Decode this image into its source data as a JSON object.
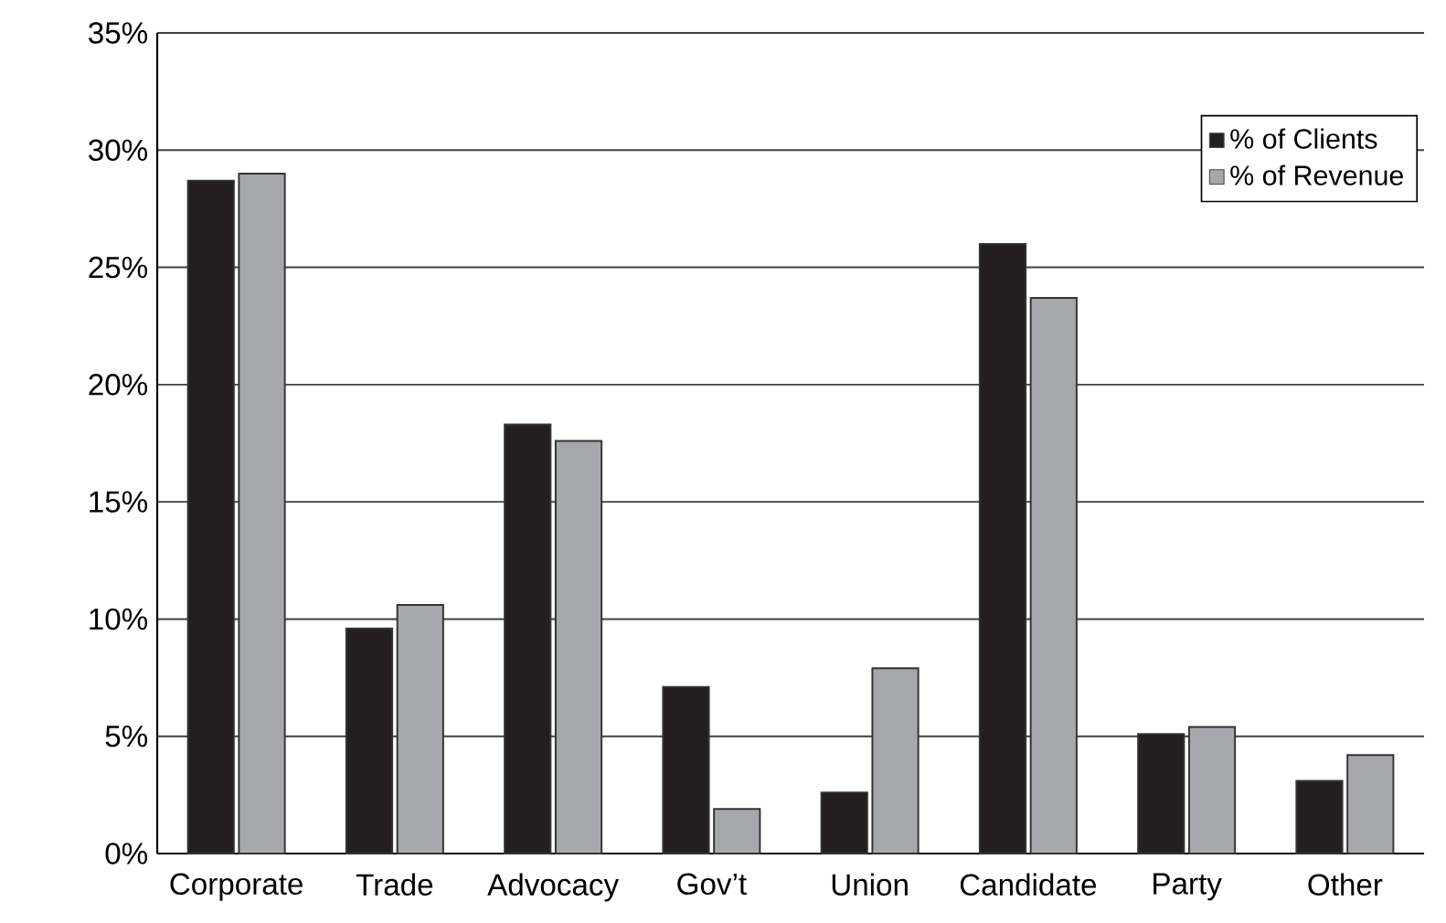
{
  "chart_data": {
    "type": "bar",
    "categories": [
      "Corporate",
      "Trade",
      "Advocacy",
      "Gov’t",
      "Union",
      "Candidate",
      "Party",
      "Other"
    ],
    "series": [
      {
        "name": "% of Clients",
        "color": "#231f20",
        "values": [
          28.7,
          9.6,
          18.3,
          7.1,
          2.6,
          26.0,
          5.1,
          3.1
        ]
      },
      {
        "name": "% of Revenue",
        "color": "#a7a8ab",
        "values": [
          29.0,
          10.6,
          17.6,
          1.9,
          7.9,
          23.7,
          5.4,
          4.2
        ]
      }
    ],
    "ylim": [
      0,
      35
    ],
    "yticks": [
      {
        "value": 0,
        "label": "0%"
      },
      {
        "value": 5,
        "label": "5%"
      },
      {
        "value": 10,
        "label": "10%"
      },
      {
        "value": 15,
        "label": "15%"
      },
      {
        "value": 20,
        "label": "20%"
      },
      {
        "value": 25,
        "label": "25%"
      },
      {
        "value": 30,
        "label": "30%"
      },
      {
        "value": 35,
        "label": "35%"
      }
    ],
    "grid": "y",
    "legend": "top right"
  }
}
